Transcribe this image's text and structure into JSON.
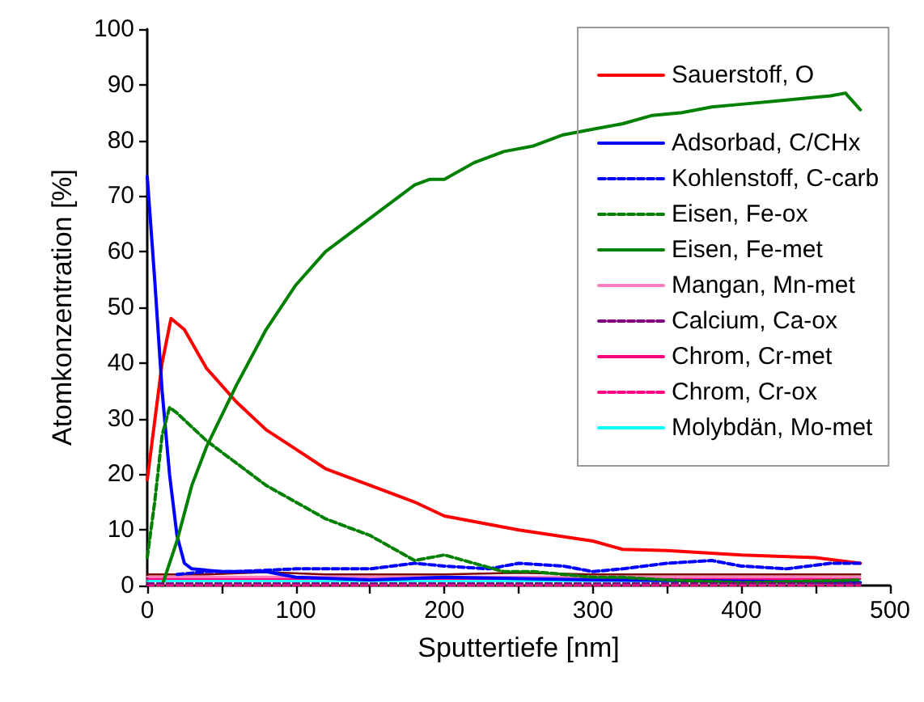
{
  "chart_data": {
    "type": "line",
    "xlabel": "Sputtertiefe [nm]",
    "ylabel": "Atomkonzentration [%]",
    "xlim": [
      0,
      500
    ],
    "xticks": [
      0,
      {
        "value": 50,
        "label": null
      },
      100,
      {
        "value": 150,
        "label": null
      },
      200,
      {
        "value": 250,
        "label": null
      },
      300,
      {
        "value": 350,
        "label": null
      },
      400,
      {
        "value": 450,
        "label": null
      },
      500
    ],
    "ylim": [
      0,
      100
    ],
    "yticks": [
      0,
      10,
      20,
      30,
      40,
      50,
      60,
      70,
      80,
      90,
      100
    ],
    "grid": false,
    "legend": "top right",
    "marker": "none",
    "series": [
      {
        "name": "Sauerstoff, O",
        "color": "#ff0000",
        "x": [
          0,
          10,
          16,
          25,
          40,
          60,
          80,
          100,
          120,
          150,
          180,
          200,
          250,
          300,
          320,
          350,
          400,
          450,
          480
        ],
        "values": [
          19,
          40,
          48,
          46,
          39,
          33,
          28,
          24.5,
          21,
          18,
          15,
          12.5,
          10,
          8,
          6.5,
          6.3,
          5.5,
          5,
          4
        ]
      },
      {
        "name": "Adsorbad, C/CHx",
        "color": "#0000ff",
        "x": [
          0,
          5,
          10,
          15,
          20,
          25,
          30,
          50,
          80,
          100,
          150,
          200,
          300,
          400,
          480
        ],
        "values": [
          73.5,
          55,
          35,
          20,
          9,
          4,
          3,
          2.5,
          2.5,
          1.5,
          1,
          1.5,
          1,
          0.8,
          0.5
        ]
      },
      {
        "name": "Kohlenstoff, C-carb",
        "color": "#0000ff",
        "line_style": "dashed",
        "x": [
          20,
          40,
          60,
          100,
          150,
          180,
          200,
          230,
          250,
          280,
          300,
          320,
          350,
          380,
          400,
          430,
          460,
          480
        ],
        "values": [
          2,
          2.5,
          2.5,
          3,
          3,
          4,
          3.5,
          3,
          4,
          3.5,
          2.5,
          3,
          4,
          4.5,
          3.5,
          3,
          4,
          4
        ]
      },
      {
        "name": "Eisen, Fe-ox",
        "color": "#008000",
        "line_style": "dashed",
        "x": [
          0,
          5,
          10,
          15,
          20,
          40,
          60,
          80,
          100,
          120,
          150,
          170,
          180,
          200,
          220,
          240,
          260,
          300,
          320,
          350,
          400,
          480
        ],
        "values": [
          5,
          15,
          27,
          32,
          31,
          26,
          22,
          18,
          15,
          12,
          9,
          6,
          4.5,
          5.5,
          4,
          2.5,
          2.5,
          1.5,
          1.5,
          1,
          0.5,
          1
        ]
      },
      {
        "name": "Eisen, Fe-met",
        "color": "#008000",
        "x": [
          10,
          20,
          30,
          40,
          60,
          80,
          100,
          120,
          140,
          160,
          180,
          190,
          200,
          220,
          240,
          260,
          280,
          300,
          320,
          340,
          360,
          380,
          400,
          420,
          440,
          460,
          470,
          480
        ],
        "values": [
          0,
          8,
          18,
          25,
          36,
          46,
          54,
          60,
          64,
          68,
          72,
          73,
          73,
          76,
          78,
          79,
          81,
          82,
          83,
          84.5,
          85,
          86,
          86.5,
          87,
          87.5,
          88,
          88.5,
          85.5
        ]
      },
      {
        "name": "Mangan, Mn-met",
        "color": "#ff80c0",
        "x": [
          0,
          100,
          200,
          300,
          400,
          480
        ],
        "values": [
          1.6,
          1.6,
          1.6,
          1.6,
          1.6,
          1.6
        ]
      },
      {
        "name": "Calcium, Ca-ox",
        "color": "#800080",
        "line_style": "dashed",
        "x": [
          0,
          100,
          200,
          300,
          400,
          480
        ],
        "values": [
          0.4,
          0.4,
          0.4,
          0.4,
          0.4,
          0.4
        ]
      },
      {
        "name": "Chrom, Cr-met",
        "color": "#ff0080",
        "x": [
          0,
          100,
          200,
          300,
          400,
          480
        ],
        "values": [
          1.2,
          1.2,
          1.2,
          1.2,
          1.2,
          1.2
        ]
      },
      {
        "name": "Chrom, Cr-ox",
        "color": "#ff0080",
        "line_style": "dashed",
        "x": [
          0,
          100,
          200,
          300,
          400,
          480
        ],
        "values": [
          0,
          0,
          0,
          0,
          0,
          0
        ]
      },
      {
        "name": "Molybdän, Mo-met",
        "color": "#00ffff",
        "x": [
          0,
          100,
          200,
          300,
          400,
          480
        ],
        "values": [
          0.8,
          0.8,
          0.8,
          0.8,
          0.8,
          0.8
        ]
      },
      {
        "color": "#800000",
        "x": [
          0,
          40,
          80,
          120,
          200,
          250,
          300,
          350,
          400,
          480
        ],
        "values": [
          2,
          2,
          2.4,
          2,
          2,
          2.3,
          2,
          2,
          2,
          2
        ]
      }
    ]
  }
}
